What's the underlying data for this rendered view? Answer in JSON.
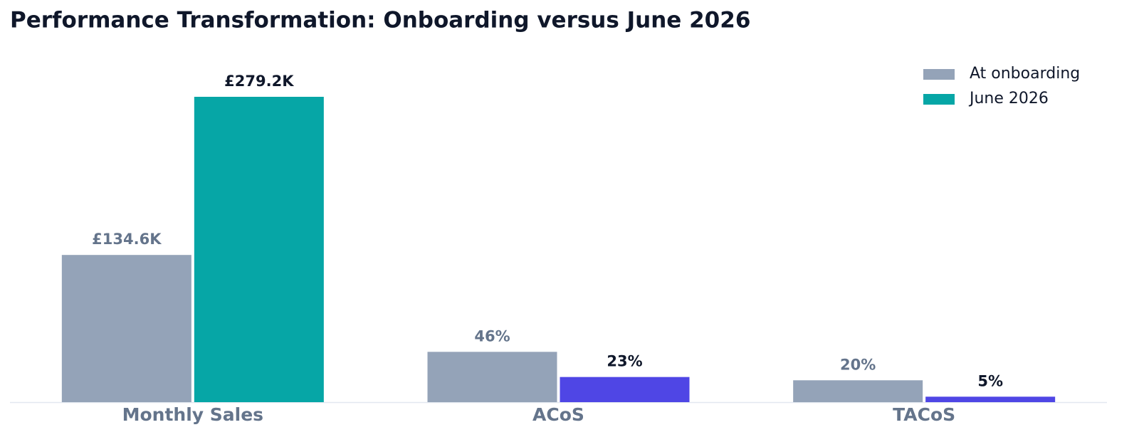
{
  "chart_data": {
    "type": "bar",
    "title": "Performance Transformation: Onboarding versus June 2026",
    "categories": [
      "Monthly Sales",
      "ACoS",
      "TACoS"
    ],
    "series": [
      {
        "name": "At onboarding",
        "color": "#94a3b8",
        "label_color": "#64748b",
        "values": [
          134.6,
          46,
          20
        ],
        "value_labels": [
          "£134.6K",
          "46%",
          "20%"
        ]
      },
      {
        "name": "June 2026",
        "color": "#06a6a6",
        "colors": [
          "#06a6a6",
          "#4f46e5",
          "#4f46e5"
        ],
        "label_color": "#0f172a",
        "values": [
          279.2,
          23,
          5
        ],
        "value_labels": [
          "£279.2K",
          "23%",
          "5%"
        ]
      }
    ],
    "legend": "upper right"
  }
}
